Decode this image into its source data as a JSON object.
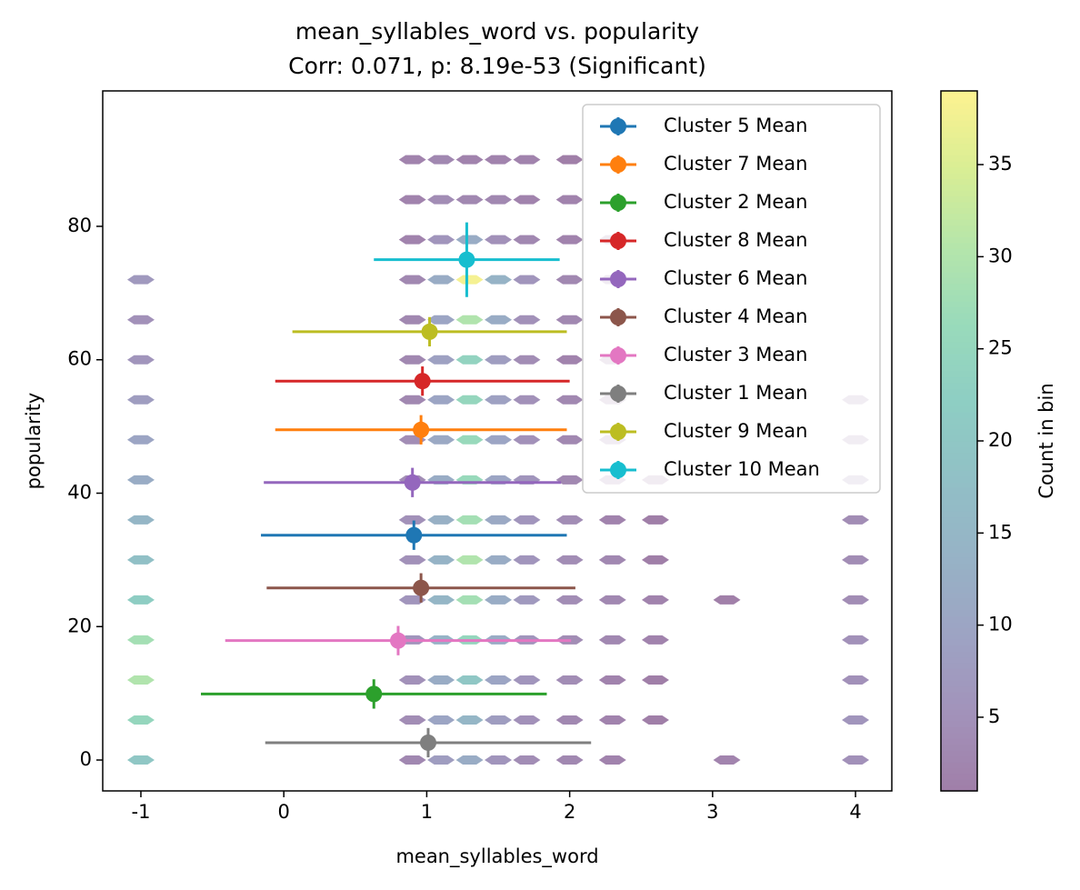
{
  "chart_data": {
    "type": "hexbin-errorbar",
    "title": "mean_syllables_word vs. popularity",
    "subtitle": "Corr: 0.071, p: 8.19e-53 (Significant)",
    "x_label": "mean_syllables_word",
    "y_label": "popularity",
    "xlim": [
      -1.267,
      4.254
    ],
    "ylim": [
      -4.63,
      100.3
    ],
    "xticks": [
      -1,
      0,
      1,
      2,
      3,
      4
    ],
    "yticks": [
      0,
      20,
      40,
      60,
      80
    ],
    "colorbar": {
      "label": "Count in bin",
      "lim": [
        1,
        39
      ],
      "ticks": [
        5,
        10,
        15,
        20,
        25,
        30,
        35
      ],
      "colormap": "viridis",
      "alpha": 0.5
    },
    "legend_loc": "upper right",
    "hexbin": {
      "x": [
        -1,
        0.9,
        1.1,
        1.3,
        1.5,
        1.7,
        2.0,
        2.3,
        2.6,
        3.1,
        4
      ],
      "y": [
        0,
        6,
        12,
        18,
        24,
        30,
        36,
        42,
        48,
        54,
        60,
        66,
        72,
        78,
        84,
        90
      ],
      "counts": [
        [
          20,
          3,
          8,
          12,
          6,
          4,
          3,
          2,
          null,
          2,
          5
        ],
        [
          25,
          4,
          10,
          15,
          8,
          5,
          3,
          2,
          1,
          null,
          6
        ],
        [
          30,
          5,
          12,
          20,
          10,
          6,
          4,
          2,
          1,
          null,
          5
        ],
        [
          28,
          6,
          14,
          25,
          12,
          6,
          4,
          3,
          2,
          null,
          5
        ],
        [
          22,
          6,
          15,
          28,
          12,
          7,
          4,
          3,
          2,
          1,
          4
        ],
        [
          18,
          5,
          14,
          30,
          12,
          6,
          4,
          3,
          1,
          null,
          4
        ],
        [
          15,
          5,
          13,
          28,
          11,
          6,
          4,
          2,
          1,
          null,
          4
        ],
        [
          12,
          4,
          12,
          26,
          10,
          6,
          3,
          2,
          1,
          null,
          4
        ],
        [
          10,
          4,
          11,
          26,
          10,
          5,
          3,
          2,
          null,
          null,
          3
        ],
        [
          8,
          3,
          10,
          25,
          9,
          5,
          3,
          1,
          null,
          null,
          3
        ],
        [
          6,
          3,
          9,
          24,
          8,
          4,
          2,
          1,
          null,
          null,
          null
        ],
        [
          5,
          3,
          10,
          30,
          12,
          5,
          3,
          null,
          null,
          null,
          null
        ],
        [
          7,
          3,
          12,
          38,
          14,
          6,
          3,
          2,
          null,
          null,
          null
        ],
        [
          null,
          2,
          6,
          12,
          5,
          3,
          2,
          1,
          null,
          null,
          null
        ],
        [
          null,
          2,
          4,
          3,
          3,
          2,
          2,
          null,
          null,
          null,
          null
        ],
        [
          null,
          2,
          3,
          2,
          2,
          2,
          1,
          null,
          null,
          null,
          null
        ]
      ]
    },
    "series": [
      {
        "name": "Cluster 5 Mean",
        "color": "#1f77b4",
        "x": 0.91,
        "y": 33.7,
        "xerr": 1.07,
        "yerr": 2.2
      },
      {
        "name": "Cluster 7 Mean",
        "color": "#ff7f0e",
        "x": 0.96,
        "y": 49.5,
        "xerr": 1.02,
        "yerr": 2.2
      },
      {
        "name": "Cluster 2 Mean",
        "color": "#2ca02c",
        "x": 0.63,
        "y": 9.9,
        "xerr": 1.21,
        "yerr": 2.2
      },
      {
        "name": "Cluster 8 Mean",
        "color": "#d62728",
        "x": 0.97,
        "y": 56.8,
        "xerr": 1.03,
        "yerr": 2.2
      },
      {
        "name": "Cluster 6 Mean",
        "color": "#9467bd",
        "x": 0.9,
        "y": 41.6,
        "xerr": 1.04,
        "yerr": 2.2
      },
      {
        "name": "Cluster 4 Mean",
        "color": "#8c564b",
        "x": 0.96,
        "y": 25.8,
        "xerr": 1.08,
        "yerr": 2.2
      },
      {
        "name": "Cluster 3 Mean",
        "color": "#e377c2",
        "x": 0.8,
        "y": 17.9,
        "xerr": 1.21,
        "yerr": 2.2
      },
      {
        "name": "Cluster 1 Mean",
        "color": "#7f7f7f",
        "x": 1.01,
        "y": 2.6,
        "xerr": 1.14,
        "yerr": 2.2
      },
      {
        "name": "Cluster 9 Mean",
        "color": "#bcbd22",
        "x": 1.02,
        "y": 64.2,
        "xerr": 0.96,
        "yerr": 2.2
      },
      {
        "name": "Cluster 10 Mean",
        "color": "#17becf",
        "x": 1.28,
        "y": 75.0,
        "xerr": 0.65,
        "yerr": 5.6
      }
    ]
  }
}
